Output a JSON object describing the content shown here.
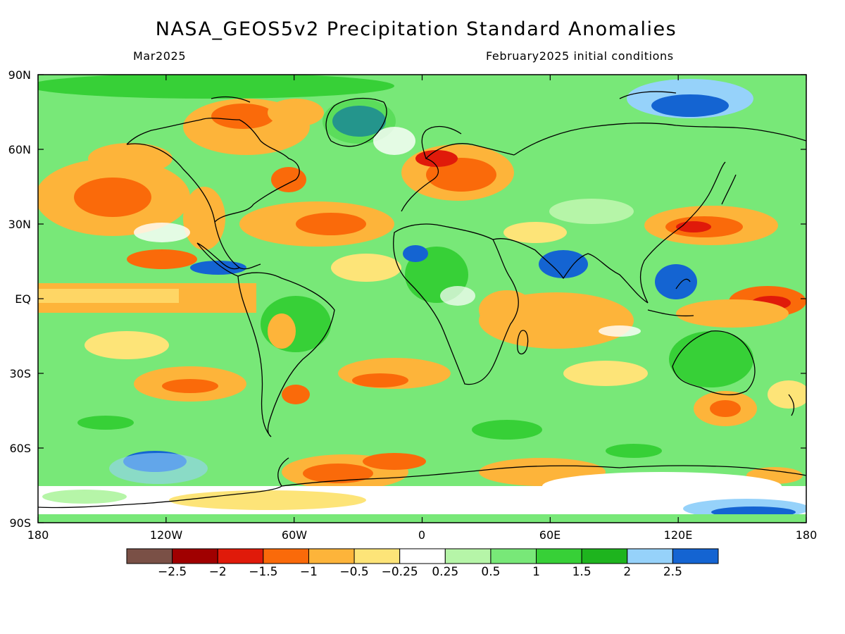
{
  "title": "NASA_GEOS5v2 Precipitation Standard Anomalies",
  "subtitle_left": "Mar2025",
  "subtitle_right": "February2025 initial conditions",
  "lat_labels": [
    "90N",
    "60N",
    "30N",
    "EQ",
    "30S",
    "60S",
    "90S"
  ],
  "lon_labels": [
    "180",
    "120W",
    "60W",
    "0",
    "60E",
    "120E",
    "180"
  ],
  "colorbar": {
    "colors": [
      "#7a5046",
      "#a00000",
      "#e01a0a",
      "#fa6a0a",
      "#fdb43a",
      "#fde478",
      "#ffffff",
      "#b6f5a8",
      "#78e878",
      "#37d037",
      "#1eb41e",
      "#96d2fa",
      "#1464d2"
    ],
    "labels": [
      "−2.5",
      "−2",
      "−1.5",
      "−1",
      "−0.5",
      "−0.25",
      "0.25",
      "0.5",
      "1",
      "1.5",
      "2",
      "2.5"
    ]
  }
}
